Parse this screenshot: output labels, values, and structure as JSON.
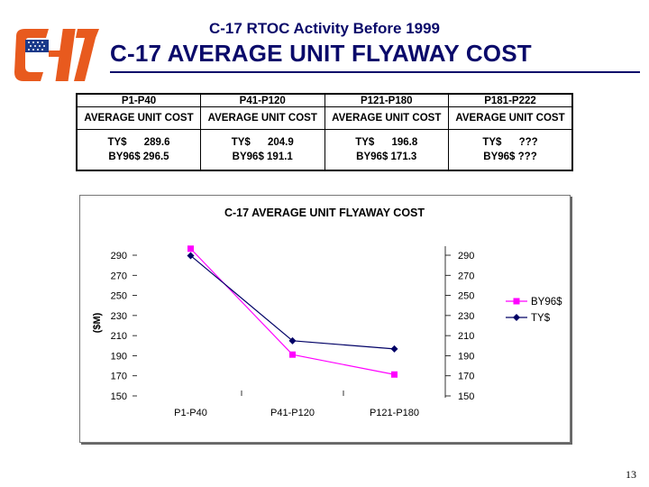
{
  "slide": {
    "supertitle": "C-17 RTOC Activity Before 1999",
    "title": "C-17 AVERAGE UNIT FLYAWAY COST",
    "page_number": "13"
  },
  "table": {
    "columns": [
      {
        "header": "P1-P40",
        "label": "AVERAGE UNIT COST",
        "ty": "TY$      289.6",
        "by": "BY96$ 296.5"
      },
      {
        "header": "P41-P120",
        "label": "AVERAGE UNIT COST",
        "ty": "TY$      204.9",
        "by": "BY96$ 191.1"
      },
      {
        "header": "P121-P180",
        "label": "AVERAGE UNIT COST",
        "ty": "TY$      196.8",
        "by": "BY96$ 171.3"
      },
      {
        "header": "P181-P222",
        "label": "AVERAGE UNIT COST",
        "ty": "TY$      ???",
        "by": "BY96$ ???"
      }
    ]
  },
  "chart_data": {
    "type": "line",
    "title": "C-17 AVERAGE UNIT FLYAWAY COST",
    "ylabel": "($M)",
    "xlabel": "",
    "categories": [
      "P1-P40",
      "P41-P120",
      "P121-P180"
    ],
    "ylim": [
      150,
      290
    ],
    "yticks": [
      290,
      270,
      250,
      230,
      210,
      190,
      170,
      150
    ],
    "series": [
      {
        "name": "BY96$",
        "values": [
          296.5,
          191.1,
          171.3
        ],
        "color": "#ff00ff",
        "marker": "square"
      },
      {
        "name": "TY$",
        "values": [
          289.6,
          204.9,
          196.8
        ],
        "color": "#000066",
        "marker": "diamond"
      }
    ],
    "legend_position": "right",
    "grid": false
  }
}
